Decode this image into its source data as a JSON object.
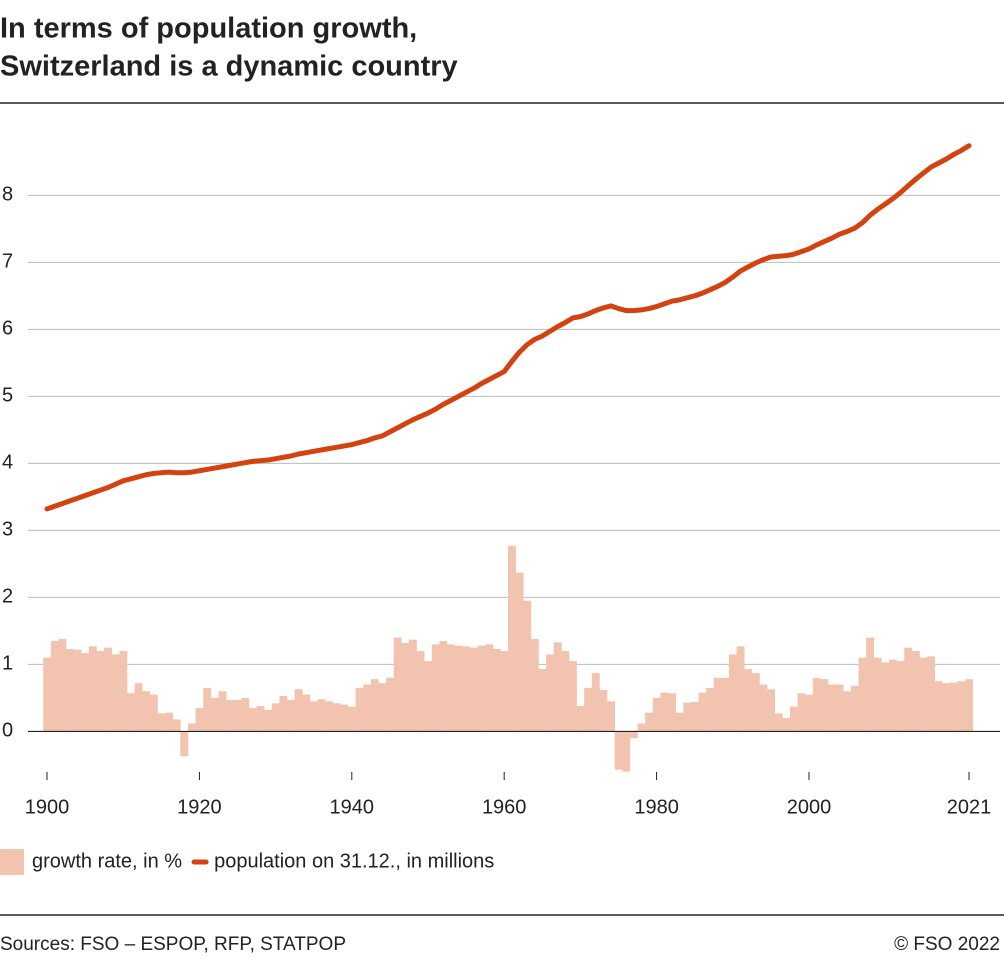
{
  "chart_data": {
    "type": "combo",
    "title": [
      "In terms of population growth,",
      "Switzerland is a dynamic country"
    ],
    "source": "Sources: FSO – ESPOP, RFP, STATPOP",
    "credit": "© FSO 2022",
    "x": [
      1900,
      1901,
      1902,
      1903,
      1904,
      1905,
      1906,
      1907,
      1908,
      1909,
      1910,
      1911,
      1912,
      1913,
      1914,
      1915,
      1916,
      1917,
      1918,
      1919,
      1920,
      1921,
      1922,
      1923,
      1924,
      1925,
      1926,
      1927,
      1928,
      1929,
      1930,
      1931,
      1932,
      1933,
      1934,
      1935,
      1936,
      1937,
      1938,
      1939,
      1940,
      1941,
      1942,
      1943,
      1944,
      1945,
      1946,
      1947,
      1948,
      1949,
      1950,
      1951,
      1952,
      1953,
      1954,
      1955,
      1956,
      1957,
      1958,
      1959,
      1960,
      1961,
      1962,
      1963,
      1964,
      1965,
      1966,
      1967,
      1968,
      1969,
      1970,
      1971,
      1972,
      1973,
      1974,
      1975,
      1976,
      1977,
      1978,
      1979,
      1980,
      1981,
      1982,
      1983,
      1984,
      1985,
      1986,
      1987,
      1988,
      1989,
      1990,
      1991,
      1992,
      1993,
      1994,
      1995,
      1996,
      1997,
      1998,
      1999,
      2000,
      2001,
      2002,
      2003,
      2004,
      2005,
      2006,
      2007,
      2008,
      2009,
      2010,
      2011,
      2012,
      2013,
      2014,
      2015,
      2016,
      2017,
      2018,
      2019,
      2020,
      2021
    ],
    "series": [
      {
        "name": "growth rate, in %",
        "type": "bar",
        "color": "#f2c4b0",
        "values": [
          1.1,
          1.35,
          1.38,
          1.23,
          1.22,
          1.17,
          1.27,
          1.2,
          1.25,
          1.15,
          1.2,
          0.57,
          0.72,
          0.6,
          0.55,
          0.27,
          0.28,
          0.18,
          -0.37,
          0.12,
          0.35,
          0.65,
          0.5,
          0.6,
          0.47,
          0.47,
          0.5,
          0.35,
          0.38,
          0.32,
          0.42,
          0.53,
          0.47,
          0.63,
          0.55,
          0.45,
          0.48,
          0.45,
          0.42,
          0.4,
          0.37,
          0.65,
          0.7,
          0.78,
          0.72,
          0.8,
          1.4,
          1.32,
          1.37,
          1.2,
          1.05,
          1.3,
          1.35,
          1.3,
          1.28,
          1.27,
          1.25,
          1.28,
          1.3,
          1.23,
          1.2,
          2.77,
          2.37,
          1.95,
          1.38,
          0.93,
          1.15,
          1.33,
          1.2,
          1.05,
          0.38,
          0.65,
          0.87,
          0.62,
          0.45,
          -0.57,
          -0.6,
          -0.1,
          0.12,
          0.28,
          0.5,
          0.58,
          0.57,
          0.28,
          0.43,
          0.44,
          0.58,
          0.65,
          0.8,
          0.8,
          1.15,
          1.27,
          0.93,
          0.87,
          0.7,
          0.63,
          0.27,
          0.2,
          0.37,
          0.57,
          0.55,
          0.8,
          0.78,
          0.7,
          0.7,
          0.6,
          0.68,
          1.1,
          1.4,
          1.1,
          1.03,
          1.07,
          1.05,
          1.25,
          1.2,
          1.1,
          1.12,
          0.75,
          0.72,
          0.73,
          0.75,
          0.78
        ]
      },
      {
        "name": "population on 31.12., in millions",
        "type": "line",
        "color": "#d4420f",
        "values": [
          3.32,
          3.36,
          3.4,
          3.44,
          3.48,
          3.52,
          3.56,
          3.6,
          3.64,
          3.69,
          3.74,
          3.77,
          3.8,
          3.83,
          3.85,
          3.86,
          3.87,
          3.86,
          3.86,
          3.87,
          3.89,
          3.91,
          3.93,
          3.95,
          3.97,
          3.99,
          4.01,
          4.03,
          4.04,
          4.05,
          4.07,
          4.09,
          4.11,
          4.14,
          4.16,
          4.18,
          4.2,
          4.22,
          4.24,
          4.26,
          4.28,
          4.31,
          4.34,
          4.38,
          4.41,
          4.47,
          4.53,
          4.59,
          4.65,
          4.7,
          4.75,
          4.81,
          4.88,
          4.94,
          5.0,
          5.06,
          5.12,
          5.19,
          5.25,
          5.31,
          5.37,
          5.52,
          5.66,
          5.77,
          5.85,
          5.9,
          5.97,
          6.04,
          6.1,
          6.17,
          6.19,
          6.23,
          6.28,
          6.32,
          6.35,
          6.31,
          6.28,
          6.28,
          6.29,
          6.31,
          6.34,
          6.38,
          6.42,
          6.44,
          6.47,
          6.5,
          6.54,
          6.59,
          6.64,
          6.7,
          6.78,
          6.87,
          6.93,
          6.99,
          7.04,
          7.08,
          7.09,
          7.1,
          7.12,
          7.16,
          7.2,
          7.26,
          7.31,
          7.36,
          7.42,
          7.46,
          7.51,
          7.59,
          7.7,
          7.79,
          7.87,
          7.95,
          8.04,
          8.14,
          8.24,
          8.33,
          8.42,
          8.48,
          8.54,
          8.61,
          8.67,
          8.74
        ]
      }
    ],
    "xlim": [
      1900,
      2021
    ],
    "xticks": [
      1900,
      1920,
      1940,
      1960,
      1980,
      2000,
      2021
    ],
    "ylim": [
      -0.65,
      8.9
    ],
    "yticks": [
      0,
      1,
      2,
      3,
      4,
      5,
      6,
      7,
      8
    ],
    "grid": true
  }
}
